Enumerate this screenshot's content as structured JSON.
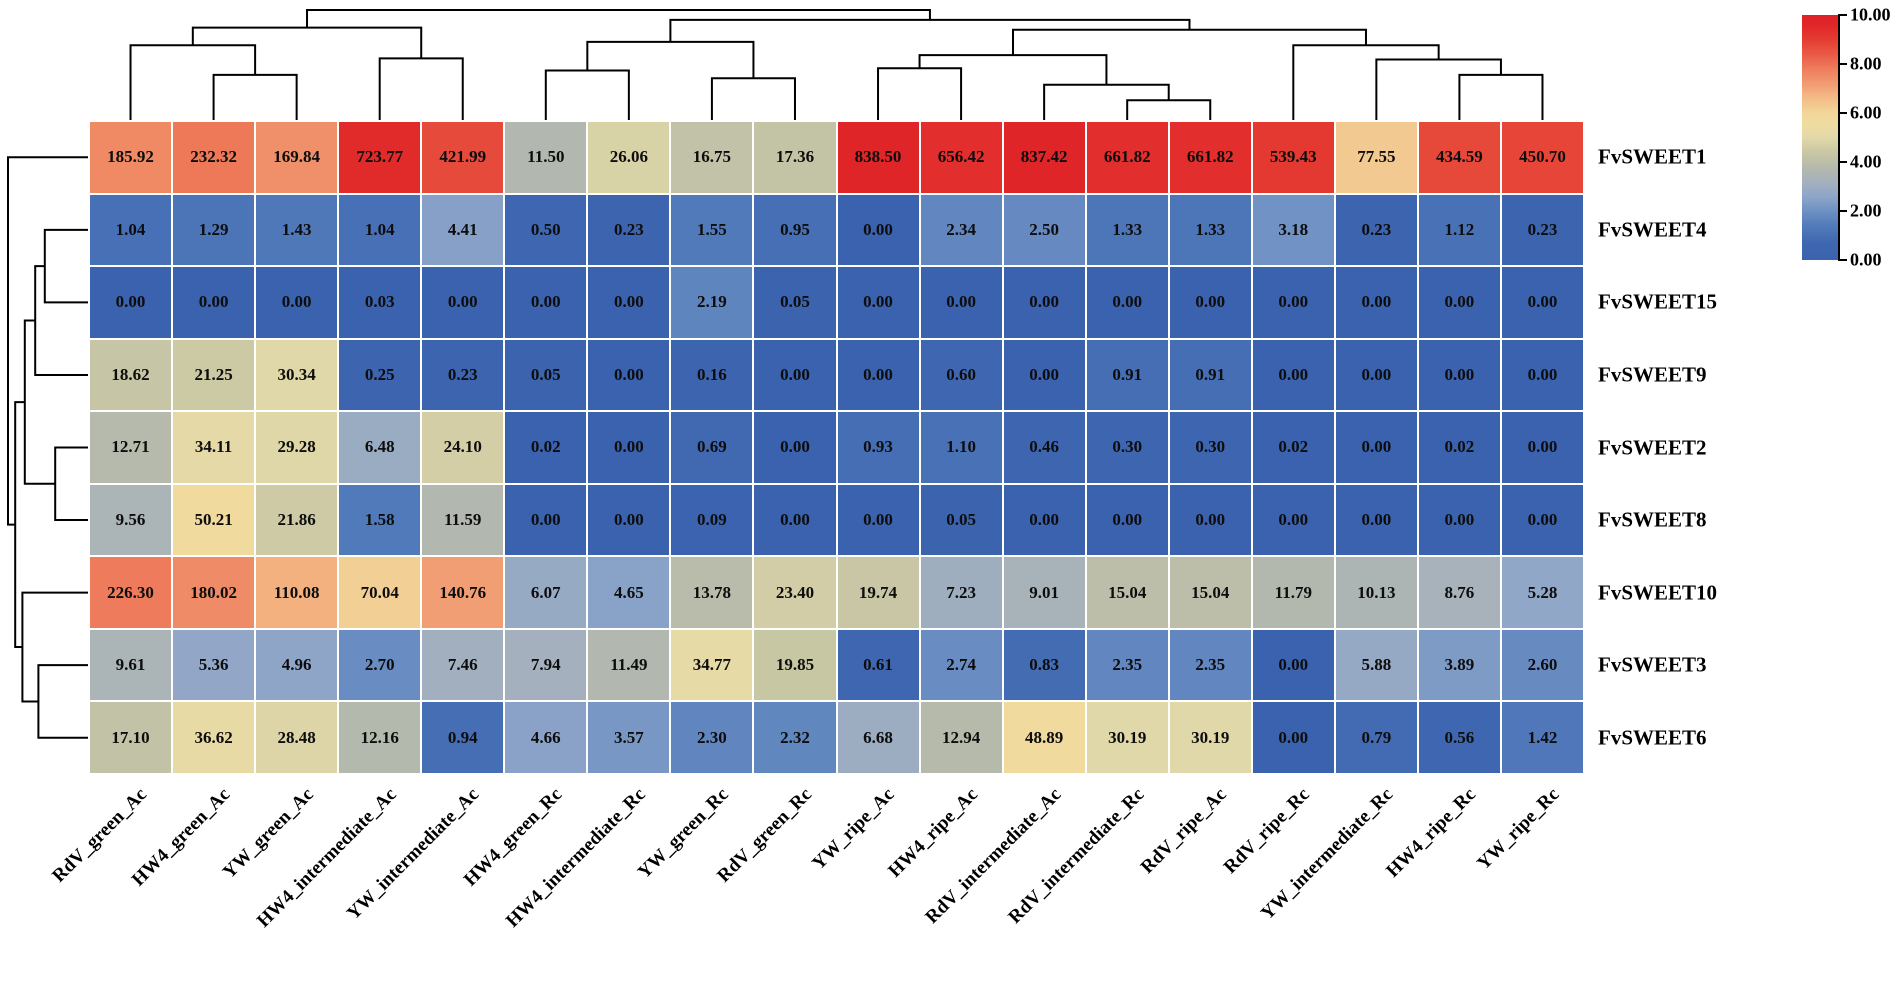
{
  "chart_data": {
    "type": "heatmap",
    "title": "",
    "columns": [
      "RdV_green_Ac",
      "HW4_green_Ac",
      "YW_green_Ac",
      "HW4_intermediate_Ac",
      "YW_intermediate_Ac",
      "HW4_green_Rc",
      "HW4_intermediate_Rc",
      "YW_green_Rc",
      "RdV_green_Rc",
      "YW_ripe_Ac",
      "HW4_ripe_Ac",
      "RdV_intermediate_Ac",
      "RdV_intermediate_Rc",
      "RdV_ripe_Ac",
      "RdV_ripe_Rc",
      "YW_intermediate_Rc",
      "HW4_ripe_Rc",
      "YW_ripe_Rc"
    ],
    "rows": [
      "FvSWEET1",
      "FvSWEET4",
      "FvSWEET15",
      "FvSWEET9",
      "FvSWEET2",
      "FvSWEET8",
      "FvSWEET10",
      "FvSWEET3",
      "FvSWEET6"
    ],
    "values": [
      [
        185.92,
        232.32,
        169.84,
        723.77,
        421.99,
        11.5,
        26.06,
        16.75,
        17.36,
        838.5,
        656.42,
        837.42,
        661.82,
        661.82,
        539.43,
        77.55,
        434.59,
        450.7
      ],
      [
        1.04,
        1.29,
        1.43,
        1.04,
        4.41,
        0.5,
        0.23,
        1.55,
        0.95,
        0.0,
        2.34,
        2.5,
        1.33,
        1.33,
        3.18,
        0.23,
        1.12,
        0.23
      ],
      [
        0.0,
        0.0,
        0.0,
        0.03,
        0.0,
        0.0,
        0.0,
        2.19,
        0.05,
        0.0,
        0.0,
        0.0,
        0.0,
        0.0,
        0.0,
        0.0,
        0.0,
        0.0
      ],
      [
        18.62,
        21.25,
        30.34,
        0.25,
        0.23,
        0.05,
        0.0,
        0.16,
        0.0,
        0.0,
        0.6,
        0.0,
        0.91,
        0.91,
        0.0,
        0.0,
        0.0,
        0.0
      ],
      [
        12.71,
        34.11,
        29.28,
        6.48,
        24.1,
        0.02,
        0.0,
        0.69,
        0.0,
        0.93,
        1.1,
        0.46,
        0.3,
        0.3,
        0.02,
        0.0,
        0.02,
        0.0
      ],
      [
        9.56,
        50.21,
        21.86,
        1.58,
        11.59,
        0.0,
        0.0,
        0.09,
        0.0,
        0.0,
        0.05,
        0.0,
        0.0,
        0.0,
        0.0,
        0.0,
        0.0,
        0.0
      ],
      [
        226.3,
        180.02,
        110.08,
        70.04,
        140.76,
        6.07,
        4.65,
        13.78,
        23.4,
        19.74,
        7.23,
        9.01,
        15.04,
        15.04,
        11.79,
        10.13,
        8.76,
        5.28
      ],
      [
        9.61,
        5.36,
        4.96,
        2.7,
        7.46,
        7.94,
        11.49,
        34.77,
        19.85,
        0.61,
        2.74,
        0.83,
        2.35,
        2.35,
        0.0,
        5.88,
        3.89,
        2.6
      ],
      [
        17.1,
        36.62,
        28.48,
        12.16,
        0.94,
        4.66,
        3.57,
        2.3,
        2.32,
        6.68,
        12.94,
        48.89,
        30.19,
        30.19,
        0.0,
        0.79,
        0.56,
        1.42
      ]
    ],
    "colorbar": {
      "tick_labels": [
        "10.00",
        "8.00",
        "6.00",
        "4.00",
        "2.00",
        "0.00"
      ],
      "min": 0,
      "max": 10
    },
    "value_transform": "log2(value+1) clipped to [0,10] for color mapping",
    "color_scale": {
      "stops": [
        [
          0.0,
          "#3A62AE"
        ],
        [
          0.07,
          "#3F67B1"
        ],
        [
          0.14,
          "#527BBB"
        ],
        [
          0.2,
          "#6E90C3"
        ],
        [
          0.26,
          "#8FA6C8"
        ],
        [
          0.32,
          "#A5B1BC"
        ],
        [
          0.38,
          "#B6BAAB"
        ],
        [
          0.44,
          "#C9C7A4"
        ],
        [
          0.5,
          "#E2D9A9"
        ],
        [
          0.55,
          "#EFDCA0"
        ],
        [
          0.6,
          "#F1D69A"
        ],
        [
          0.66,
          "#F4BC87"
        ],
        [
          0.72,
          "#F19B72"
        ],
        [
          0.78,
          "#EE7D5C"
        ],
        [
          0.84,
          "#E95A45"
        ],
        [
          0.9,
          "#E43C32"
        ],
        [
          0.96,
          "#E02629"
        ],
        [
          1.0,
          "#DF2127"
        ]
      ],
      "low_color": "#3A62AE",
      "mid_color": "#E2D9A9",
      "high_color": "#DF2127"
    },
    "grid": true,
    "legend_position": "right",
    "col_dendrogram": {
      "merges": [
        {
          "a": "L1",
          "b": "L2",
          "h": 0.41
        },
        {
          "a": "L0",
          "b": "M0",
          "h": 0.68
        },
        {
          "a": "L3",
          "b": "L4",
          "h": 0.56
        },
        {
          "a": "M1",
          "b": "M2",
          "h": 0.84
        },
        {
          "a": "L5",
          "b": "L6",
          "h": 0.45
        },
        {
          "a": "L7",
          "b": "L8",
          "h": 0.38
        },
        {
          "a": "M4",
          "b": "M5",
          "h": 0.71
        },
        {
          "a": "L9",
          "b": "L10",
          "h": 0.47
        },
        {
          "a": "L12",
          "b": "L13",
          "h": 0.18
        },
        {
          "a": "L11",
          "b": "M8",
          "h": 0.32
        },
        {
          "a": "M7",
          "b": "M9",
          "h": 0.59
        },
        {
          "a": "L16",
          "b": "L17",
          "h": 0.41
        },
        {
          "a": "L15",
          "b": "M11",
          "h": 0.55
        },
        {
          "a": "L14",
          "b": "M12",
          "h": 0.68
        },
        {
          "a": "M10",
          "b": "M13",
          "h": 0.82
        },
        {
          "a": "M6",
          "b": "M14",
          "h": 0.91
        },
        {
          "a": "M3",
          "b": "M15",
          "h": 1.0
        }
      ]
    },
    "row_dendrogram": {
      "merges": [
        {
          "a": "L1",
          "b": "L2",
          "h": 0.54
        },
        {
          "a": "M0",
          "b": "L3",
          "h": 0.66
        },
        {
          "a": "L4",
          "b": "L5",
          "h": 0.41
        },
        {
          "a": "M1",
          "b": "M2",
          "h": 0.79
        },
        {
          "a": "L7",
          "b": "L8",
          "h": 0.62
        },
        {
          "a": "L6",
          "b": "M4",
          "h": 0.82
        },
        {
          "a": "M3",
          "b": "M5",
          "h": 0.91
        },
        {
          "a": "L0",
          "b": "M6",
          "h": 1.0
        }
      ]
    }
  }
}
